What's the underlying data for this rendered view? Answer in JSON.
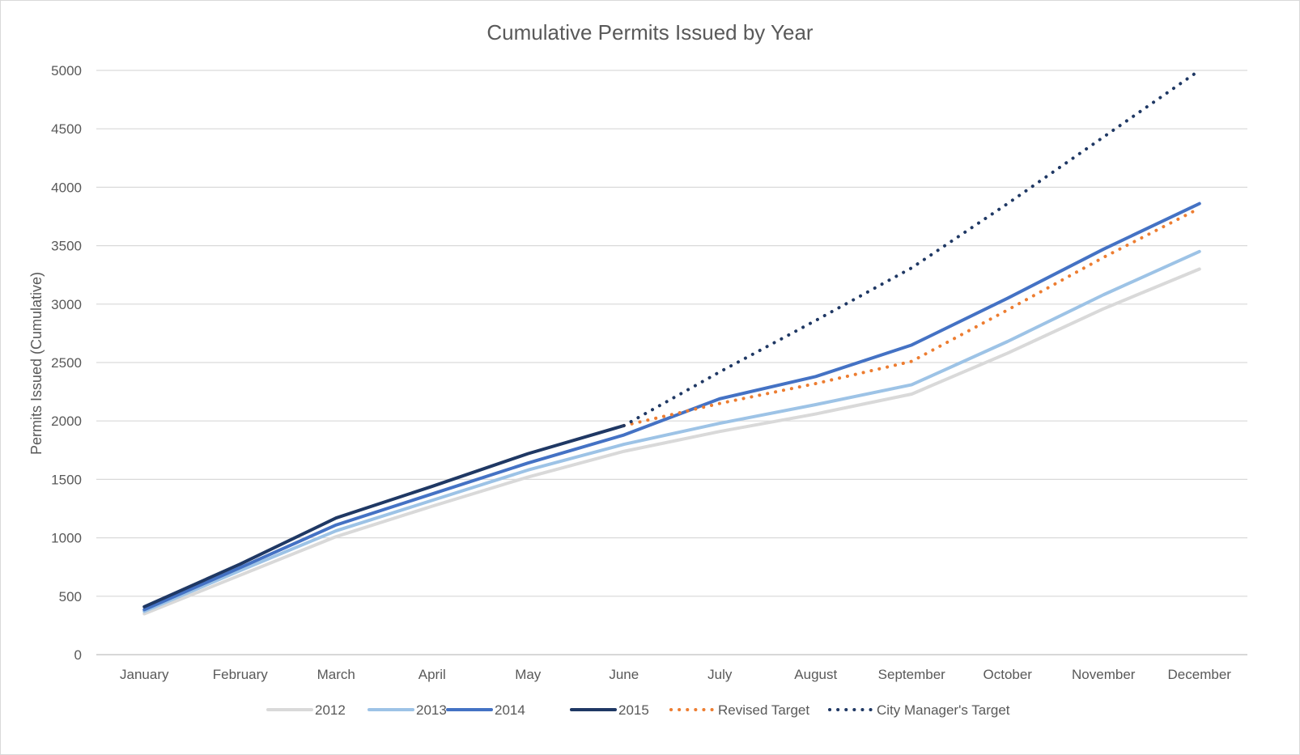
{
  "chart_data": {
    "type": "line",
    "title": "Cumulative Permits Issued by Year",
    "xlabel": "",
    "ylabel": "Permits Issued (Cumulative)",
    "categories": [
      "January",
      "February",
      "March",
      "April",
      "May",
      "June",
      "July",
      "August",
      "September",
      "October",
      "November",
      "December"
    ],
    "ylim": [
      0,
      5000
    ],
    "yticks": [
      "0",
      "500",
      "1000",
      "1500",
      "2000",
      "2500",
      "3000",
      "3500",
      "4000",
      "4500",
      "5000"
    ],
    "grid": true,
    "legend_position": "bottom",
    "series": [
      {
        "name": "2012",
        "values": [
          350,
          680,
          1010,
          1270,
          1520,
          1740,
          1910,
          2060,
          2230,
          2580,
          2960,
          3300
        ],
        "color": "#d9d9d9",
        "dash": "solid"
      },
      {
        "name": "2013",
        "values": [
          370,
          720,
          1060,
          1320,
          1580,
          1800,
          1980,
          2140,
          2310,
          2680,
          3080,
          3450
        ],
        "color": "#9dc3e6",
        "dash": "solid"
      },
      {
        "name": "2014",
        "values": [
          385,
          745,
          1110,
          1375,
          1640,
          1880,
          2190,
          2380,
          2650,
          3050,
          3470,
          3860
        ],
        "color": "#4472c4",
        "dash": "solid"
      },
      {
        "name": "2015",
        "values": [
          410,
          775,
          1170,
          1440,
          1720,
          1960,
          null,
          null,
          null,
          null,
          null,
          null
        ],
        "color": "#1f3864",
        "dash": "solid"
      },
      {
        "name": "Revised Target",
        "values": [
          null,
          null,
          null,
          null,
          null,
          1960,
          2150,
          2320,
          2510,
          2950,
          3400,
          3820
        ],
        "color": "#ed7d31",
        "dash": "dotted"
      },
      {
        "name": "City Manager's Target",
        "values": [
          null,
          null,
          null,
          null,
          null,
          1960,
          2420,
          2860,
          3310,
          3860,
          4430,
          5000
        ],
        "color": "#1f3864",
        "dash": "dotted"
      }
    ]
  }
}
